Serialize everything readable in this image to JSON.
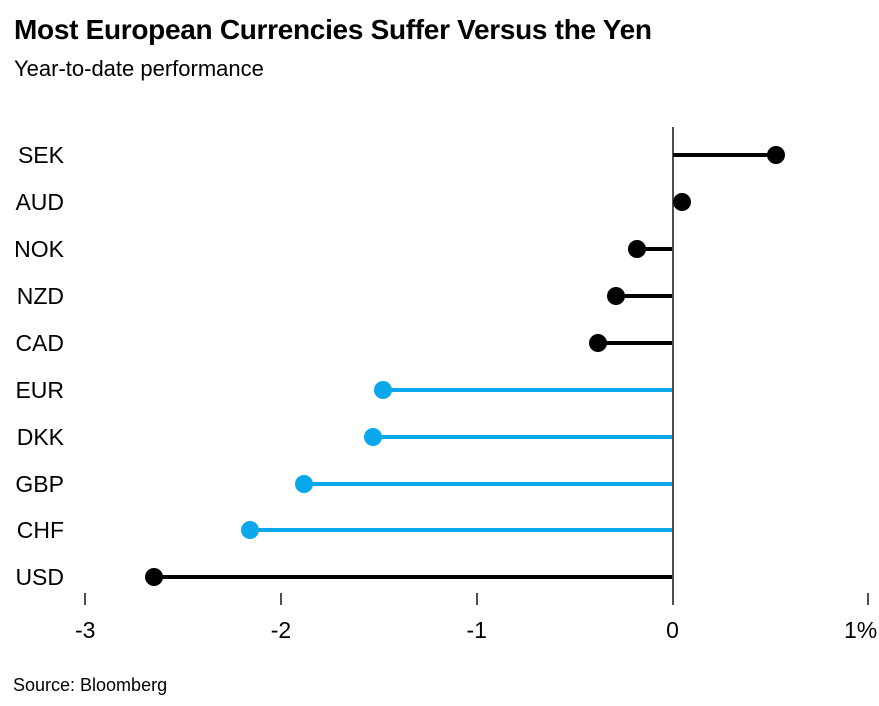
{
  "header": {
    "title": "Most European Currencies Suffer Versus the Yen",
    "subtitle": "Year-to-date performance"
  },
  "source": {
    "label": "Source: Bloomberg"
  },
  "colors": {
    "default_point": "#000000",
    "european_highlight": "#0ba7eb",
    "axis": "#4d4d4d",
    "background": "#ffffff"
  },
  "chart_data": {
    "type": "bar",
    "variant": "horizontal-lollipop",
    "title": "Most European Currencies Suffer Versus the Yen",
    "subtitle": "Year-to-date performance",
    "xlabel": "",
    "ylabel": "",
    "unit": "%",
    "baseline": 0,
    "grid": false,
    "legend": "none",
    "xlim": [
      -3.35,
      1.05
    ],
    "x_tick_values": [
      -3,
      -2,
      -1,
      0,
      1
    ],
    "x_tick_labels": [
      "-3",
      "-2",
      "-1",
      "0",
      "1%"
    ],
    "categories": [
      "SEK",
      "AUD",
      "NOK",
      "NZD",
      "CAD",
      "EUR",
      "DKK",
      "GBP",
      "CHF",
      "USD"
    ],
    "values": [
      0.53,
      0.05,
      -0.18,
      -0.29,
      -0.38,
      -1.48,
      -1.53,
      -1.88,
      -2.16,
      -2.65
    ],
    "point_colors": [
      "#000000",
      "#000000",
      "#000000",
      "#000000",
      "#000000",
      "#0ba7eb",
      "#0ba7eb",
      "#0ba7eb",
      "#0ba7eb",
      "#000000"
    ]
  }
}
